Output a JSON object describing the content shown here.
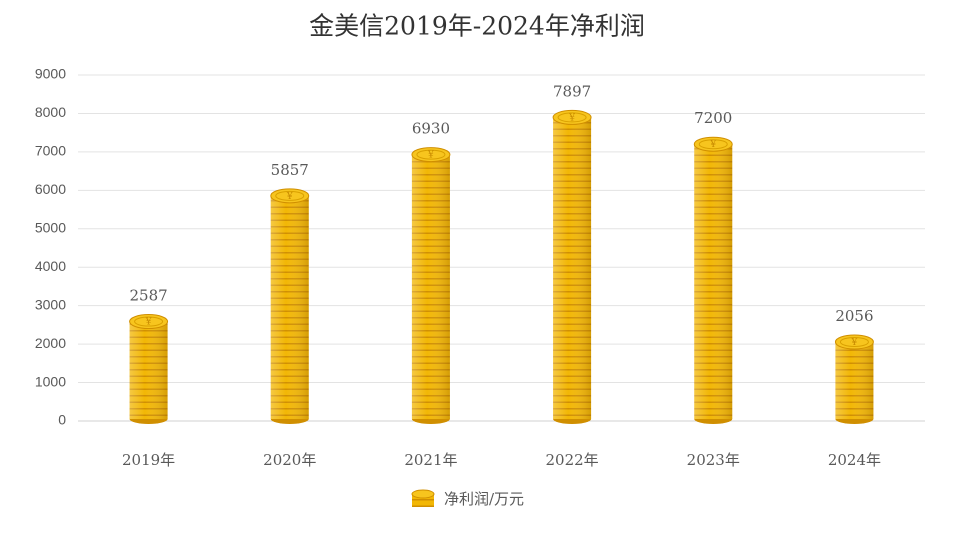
{
  "chart_data": {
    "type": "bar",
    "title": "金美信2019年-2024年净利润",
    "categories": [
      "2019年",
      "2020年",
      "2021年",
      "2022年",
      "2023年",
      "2024年"
    ],
    "series": [
      {
        "name": "净利润/万元",
        "color": "#f2b705",
        "values": [
          2587,
          5857,
          6930,
          7897,
          7200,
          2056
        ]
      }
    ],
    "ylim": [
      0,
      9000
    ],
    "yticks": [
      0,
      1000,
      2000,
      3000,
      4000,
      5000,
      6000,
      7000,
      8000,
      9000
    ],
    "grid": true,
    "legend": "bottom"
  }
}
